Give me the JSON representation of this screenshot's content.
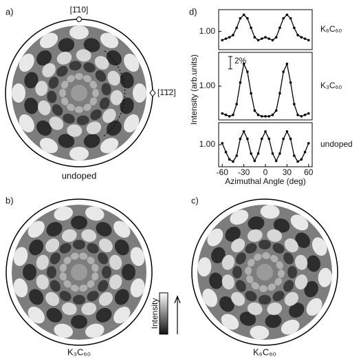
{
  "figure": {
    "a": {
      "label": "a)",
      "caption": "undoped",
      "direction_top": "[1̄10]",
      "direction_right": "[1̄1̄2]"
    },
    "b": {
      "label": "b)",
      "caption": "K₃C₆₀"
    },
    "c": {
      "label": "c)",
      "caption": "K₆C₆₀"
    },
    "colorbar": {
      "label": "Intensity"
    },
    "d": {
      "label": "d)",
      "ylabel": "Intensity (arb.units)"
    }
  },
  "chart_data": [
    {
      "type": "line",
      "x": [
        -60,
        -55,
        -50,
        -45,
        -40,
        -35,
        -30,
        -25,
        -20,
        -15,
        -10,
        -5,
        0,
        5,
        10,
        15,
        20,
        25,
        30,
        35,
        40,
        45,
        50,
        55,
        60
      ],
      "series": [
        {
          "name": "K₆C₆₀",
          "color": "#000000",
          "values": [
            0.988,
            0.99,
            0.992,
            0.995,
            1.005,
            1.018,
            1.023,
            1.018,
            1.005,
            0.992,
            0.988,
            0.99,
            0.992,
            0.99,
            0.988,
            0.992,
            1.005,
            1.018,
            1.023,
            1.018,
            1.005,
            0.995,
            0.992,
            0.99,
            0.988
          ]
        }
      ],
      "xlim": [
        -65,
        65
      ],
      "ylim": [
        0.975,
        1.03
      ],
      "yticks": [
        {
          "value": 1,
          "label": "1.00"
        }
      ]
    },
    {
      "type": "line",
      "x": [
        -60,
        -55,
        -50,
        -45,
        -40,
        -35,
        -30,
        -25,
        -20,
        -15,
        -10,
        -5,
        0,
        5,
        10,
        15,
        20,
        25,
        30,
        35,
        40,
        45,
        50,
        55,
        60
      ],
      "series": [
        {
          "name": "K₃C₆₀",
          "color": "#000000",
          "values": [
            0.962,
            0.96,
            0.958,
            0.96,
            0.975,
            1.005,
            1.031,
            1.02,
            0.99,
            0.966,
            0.96,
            0.958,
            0.958,
            0.958,
            0.96,
            0.966,
            0.99,
            1.02,
            1.031,
            1.005,
            0.975,
            0.96,
            0.958,
            0.96,
            0.962
          ]
        }
      ],
      "annotation": "2%",
      "xlim": [
        -65,
        65
      ],
      "ylim": [
        0.953,
        1.047
      ],
      "yticks": [
        {
          "value": 1,
          "label": "1.00"
        }
      ]
    },
    {
      "type": "line",
      "x": [
        -60,
        -55,
        -50,
        -45,
        -40,
        -35,
        -30,
        -25,
        -20,
        -15,
        -10,
        -5,
        0,
        5,
        10,
        15,
        20,
        25,
        30,
        35,
        40,
        45,
        50,
        55,
        60
      ],
      "series": [
        {
          "name": "undoped",
          "color": "#000000",
          "values": [
            1.002,
            0.99,
            0.98,
            0.977,
            0.985,
            1.008,
            1.018,
            1.008,
            0.988,
            0.978,
            0.988,
            1.008,
            1.018,
            1.008,
            0.988,
            0.978,
            0.988,
            1.008,
            1.018,
            1.008,
            0.985,
            0.977,
            0.98,
            0.99,
            1.002
          ]
        }
      ],
      "xlabel": "Azimuthal Angle (deg)",
      "xlim": [
        -65,
        65
      ],
      "ylim": [
        0.97,
        1.03
      ],
      "yticks": [
        {
          "value": 1,
          "label": "1.00"
        }
      ],
      "xticks": [
        -60,
        -30,
        0,
        30,
        60
      ]
    }
  ]
}
